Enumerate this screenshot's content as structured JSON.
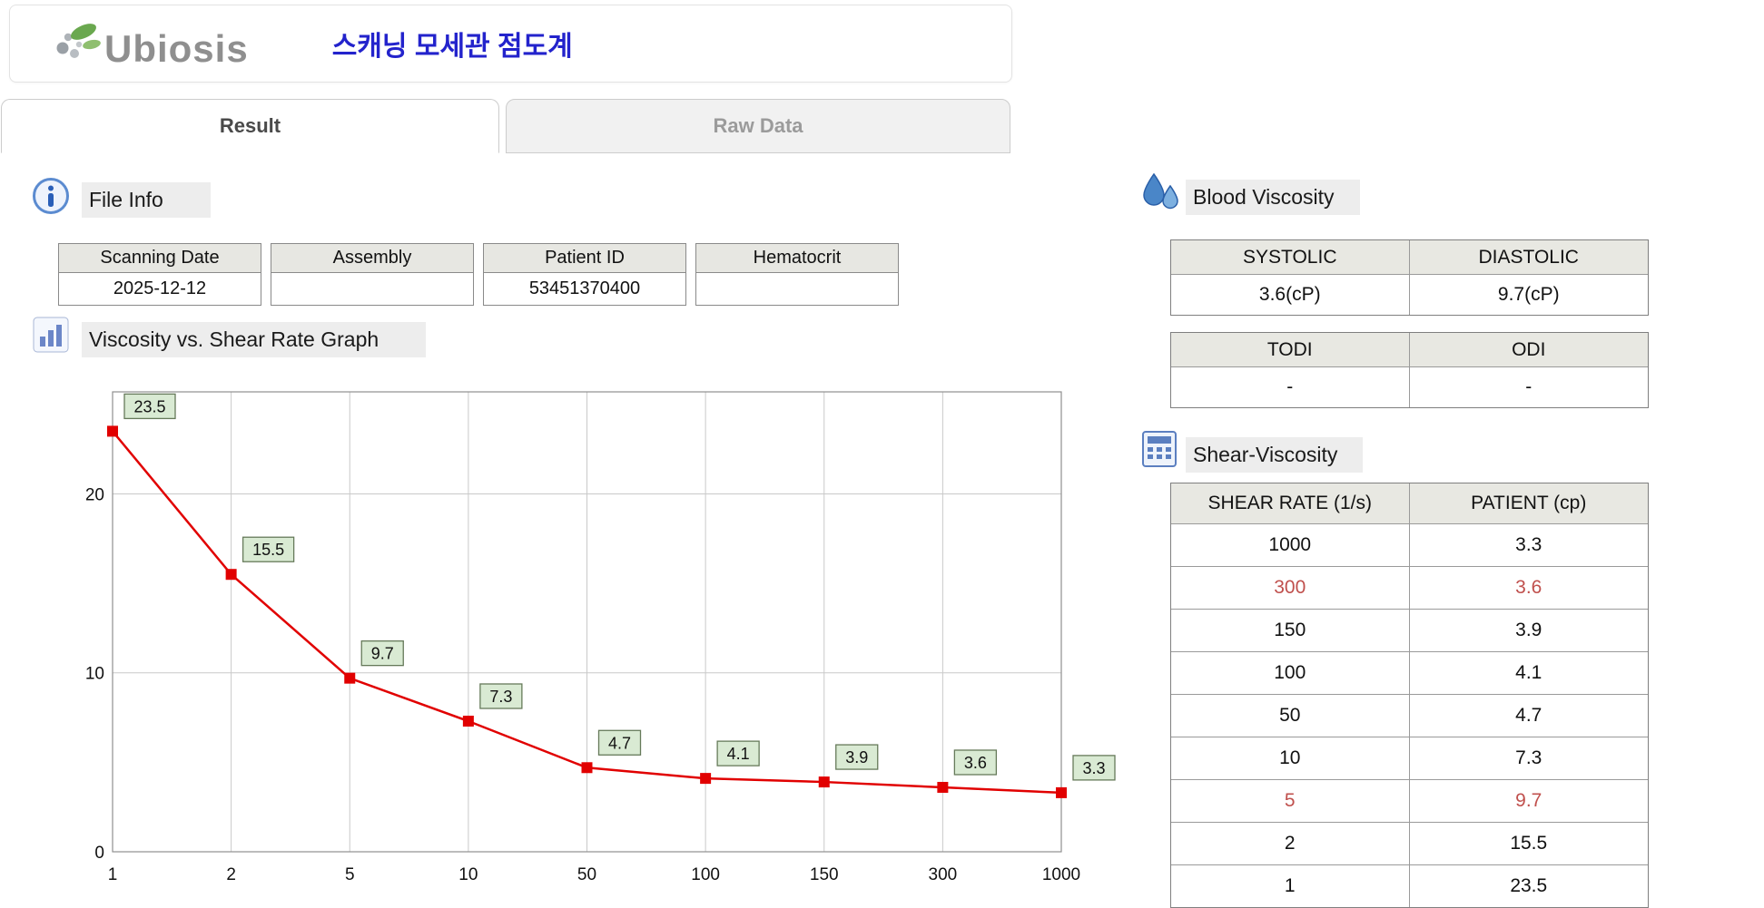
{
  "header": {
    "brand": "Ubiosis",
    "title_korean": "스캐닝 모세관 점도계"
  },
  "tabs": [
    {
      "label": "Result",
      "active": true
    },
    {
      "label": "Raw Data",
      "active": false
    }
  ],
  "file_info": {
    "section_label": "File Info",
    "icon": "info-icon",
    "fields": [
      {
        "label": "Scanning Date",
        "value": "2025-12-12"
      },
      {
        "label": "Assembly",
        "value": ""
      },
      {
        "label": "Patient ID",
        "value": "53451370400"
      },
      {
        "label": "Hematocrit",
        "value": ""
      }
    ]
  },
  "graph_section": {
    "label": "Viscosity vs. Shear Rate Graph",
    "icon": "bar-chart-icon"
  },
  "chart_data": {
    "type": "line",
    "title": "Viscosity vs. Shear Rate Graph",
    "xlabel": "",
    "ylabel": "",
    "x_categories": [
      "1",
      "2",
      "5",
      "10",
      "50",
      "100",
      "150",
      "300",
      "1000"
    ],
    "values": [
      23.5,
      15.5,
      9.7,
      7.3,
      4.7,
      4.1,
      3.9,
      3.6,
      3.3
    ],
    "y_ticks": [
      0,
      10,
      20
    ],
    "ylim": [
      0,
      25.7
    ],
    "grid": true,
    "line_color": "#e10000",
    "marker": "square",
    "label_bg": "#d9ead3",
    "label_border": "#667a5a",
    "legend": "none"
  },
  "blood_viscosity": {
    "section_label": "Blood Viscosity",
    "icon": "water-drops-icon",
    "table1": {
      "headers": [
        "SYSTOLIC",
        "DIASTOLIC"
      ],
      "values": [
        "3.6(cP)",
        "9.7(cP)"
      ]
    },
    "table2": {
      "headers": [
        "TODI",
        "ODI"
      ],
      "values": [
        "-",
        "-"
      ]
    }
  },
  "shear_viscosity": {
    "section_label": "Shear-Viscosity",
    "icon": "calculator-icon",
    "headers": [
      "SHEAR RATE (1/s)",
      "PATIENT (cp)"
    ],
    "rows": [
      {
        "shear": "1000",
        "patient": "3.3",
        "highlight": false
      },
      {
        "shear": "300",
        "patient": "3.6",
        "highlight": true
      },
      {
        "shear": "150",
        "patient": "3.9",
        "highlight": false
      },
      {
        "shear": "100",
        "patient": "4.1",
        "highlight": false
      },
      {
        "shear": "50",
        "patient": "4.7",
        "highlight": false
      },
      {
        "shear": "10",
        "patient": "7.3",
        "highlight": false
      },
      {
        "shear": "5",
        "patient": "9.7",
        "highlight": true
      },
      {
        "shear": "2",
        "patient": "15.5",
        "highlight": false
      },
      {
        "shear": "1",
        "patient": "23.5",
        "highlight": false
      }
    ],
    "highlight_color": "#c0504d"
  },
  "colors": {
    "title_blue": "#2323cc",
    "brand_gray": "#8f8f8f",
    "table_header_bg": "#e8e8e2",
    "chart_line_red": "#e10000",
    "label_green_bg": "#d9ead3",
    "highlight_red": "#c0504d"
  }
}
